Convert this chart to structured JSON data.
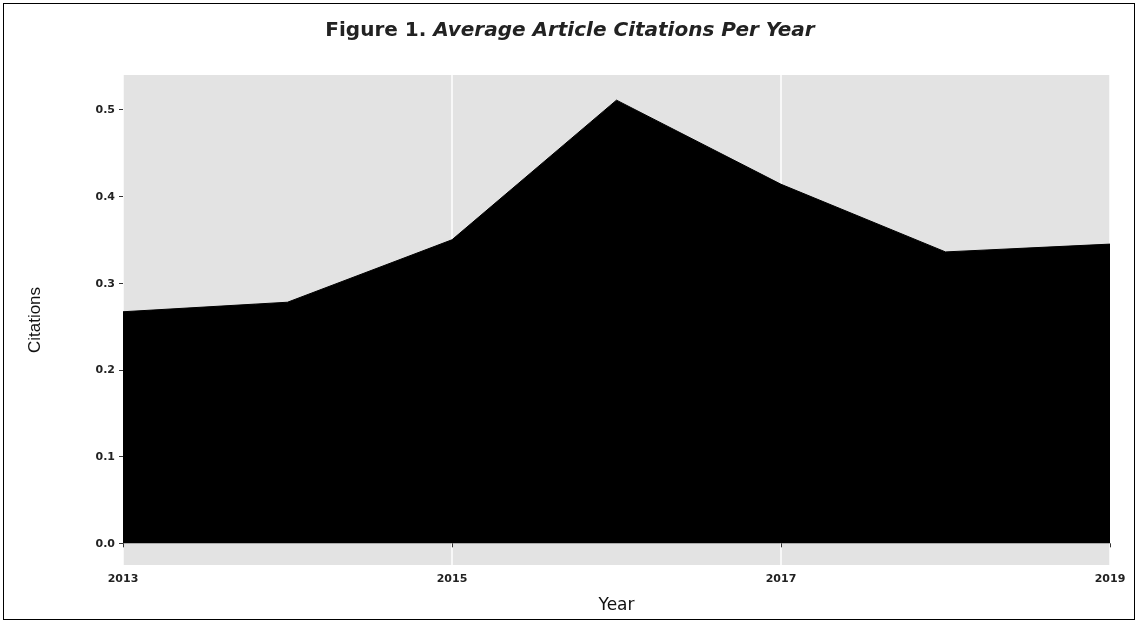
{
  "chart_data": {
    "type": "area",
    "title": "Figure 1. Average Article Citations Per Year",
    "xlabel": "Year",
    "ylabel": "Citations",
    "x": [
      2013,
      2014,
      2015,
      2016,
      2017,
      2018,
      2019
    ],
    "series": [
      {
        "color": "#000000",
        "values": [
          0.267,
          0.278,
          0.35,
          0.511,
          0.414,
          0.336,
          0.345
        ]
      }
    ],
    "xlim": [
      2013,
      2019
    ],
    "xticks": [
      2013,
      2015,
      2017,
      2019
    ],
    "ylim": [
      -0.025,
      0.54
    ],
    "yticks": [
      {
        "value": 0,
        "label": "0.0"
      },
      0.1,
      0.2,
      0.3,
      0.4,
      0.5
    ],
    "grid": "x"
  }
}
